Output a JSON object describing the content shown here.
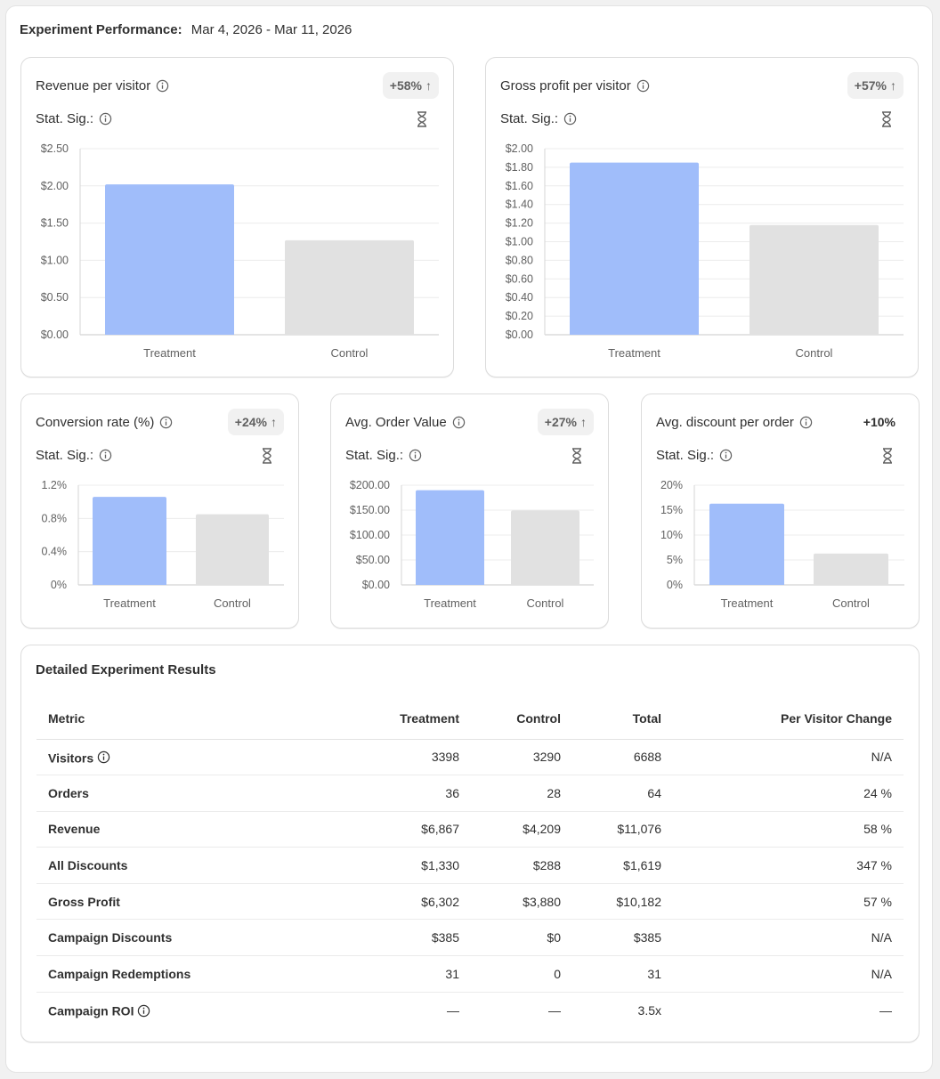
{
  "header": {
    "label": "Experiment Performance:",
    "date_range": "Mar 4, 2026 - Mar 11, 2026"
  },
  "colors": {
    "treatment": "#a0bdfa",
    "control": "#e1e1e1"
  },
  "cards": [
    {
      "title": "Revenue per visitor",
      "badge": "+58%",
      "badge_arrow": "↑",
      "stat_sig_label": "Stat. Sig.:",
      "chart_data": {
        "type": "bar",
        "categories": [
          "Treatment",
          "Control"
        ],
        "values": [
          2.02,
          1.27
        ],
        "ylim": [
          0,
          2.5
        ],
        "ticks": [
          0,
          0.5,
          1,
          1.5,
          2,
          2.5
        ],
        "tick_labels": [
          "$0.00",
          "$0.50",
          "$1.00",
          "$1.50",
          "$2.00",
          "$2.50"
        ],
        "title": "Revenue per visitor"
      }
    },
    {
      "title": "Gross profit per visitor",
      "badge": "+57%",
      "badge_arrow": "↑",
      "stat_sig_label": "Stat. Sig.:",
      "chart_data": {
        "type": "bar",
        "categories": [
          "Treatment",
          "Control"
        ],
        "values": [
          1.85,
          1.18
        ],
        "ylim": [
          0,
          2.0
        ],
        "ticks": [
          0,
          0.2,
          0.4,
          0.6,
          0.8,
          1.0,
          1.2,
          1.4,
          1.6,
          1.8,
          2.0
        ],
        "tick_labels": [
          "$0.00",
          "$0.20",
          "$0.40",
          "$0.60",
          "$0.80",
          "$1.00",
          "$1.20",
          "$1.40",
          "$1.60",
          "$1.80",
          "$2.00"
        ],
        "title": "Gross profit per visitor"
      }
    },
    {
      "title": "Conversion rate (%)",
      "badge": "+24%",
      "badge_arrow": "↑",
      "stat_sig_label": "Stat. Sig.:",
      "chart_data": {
        "type": "bar",
        "categories": [
          "Treatment",
          "Control"
        ],
        "values": [
          1.06,
          0.85
        ],
        "ylim": [
          0,
          1.2
        ],
        "ticks": [
          0,
          0.4,
          0.8,
          1.2
        ],
        "tick_labels": [
          "0%",
          "0.4%",
          "0.8%",
          "1.2%"
        ],
        "title": "Conversion rate (%)"
      }
    },
    {
      "title": "Avg. Order Value",
      "badge": "+27%",
      "badge_arrow": "↑",
      "stat_sig_label": "Stat. Sig.:",
      "chart_data": {
        "type": "bar",
        "categories": [
          "Treatment",
          "Control"
        ],
        "values": [
          190,
          149
        ],
        "ylim": [
          0,
          200
        ],
        "ticks": [
          0,
          50,
          100,
          150,
          200
        ],
        "tick_labels": [
          "$0.00",
          "$50.00",
          "$100.00",
          "$150.00",
          "$200.00"
        ],
        "title": "Avg. Order Value"
      }
    },
    {
      "title": "Avg. discount per order",
      "badge": "+10%",
      "badge_arrow": "",
      "stat_sig_label": "Stat. Sig.:",
      "chart_data": {
        "type": "bar",
        "categories": [
          "Treatment",
          "Control"
        ],
        "values": [
          16.3,
          6.3
        ],
        "ylim": [
          0,
          20
        ],
        "ticks": [
          0,
          5,
          10,
          15,
          20
        ],
        "tick_labels": [
          "0%",
          "5%",
          "10%",
          "15%",
          "20%"
        ],
        "title": "Avg. discount per order"
      }
    }
  ],
  "table": {
    "title": "Detailed Experiment Results",
    "columns": [
      "Metric",
      "Treatment",
      "Control",
      "Total",
      "Per Visitor Change"
    ],
    "rows": [
      {
        "metric": "Visitors",
        "info": true,
        "treatment": "3398",
        "control": "3290",
        "total": "6688",
        "change": "N/A"
      },
      {
        "metric": "Orders",
        "info": false,
        "treatment": "36",
        "control": "28",
        "total": "64",
        "change": "24 %"
      },
      {
        "metric": "Revenue",
        "info": false,
        "treatment": "$6,867",
        "control": "$4,209",
        "total": "$11,076",
        "change": "58 %"
      },
      {
        "metric": "All Discounts",
        "info": false,
        "treatment": "$1,330",
        "control": "$288",
        "total": "$1,619",
        "change": "347 %"
      },
      {
        "metric": "Gross Profit",
        "info": false,
        "treatment": "$6,302",
        "control": "$3,880",
        "total": "$10,182",
        "change": "57 %"
      },
      {
        "metric": "Campaign Discounts",
        "info": false,
        "treatment": "$385",
        "control": "$0",
        "total": "$385",
        "change": "N/A"
      },
      {
        "metric": "Campaign Redemptions",
        "info": false,
        "treatment": "31",
        "control": "0",
        "total": "31",
        "change": "N/A"
      },
      {
        "metric": "Campaign ROI",
        "info": true,
        "treatment": "—",
        "control": "—",
        "total": "3.5x",
        "change": "—"
      }
    ]
  }
}
